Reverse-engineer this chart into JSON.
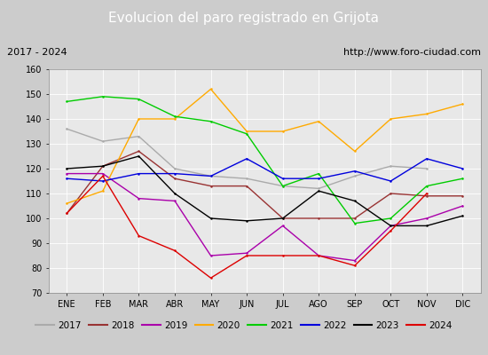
{
  "title": "Evolucion del paro registrado en Grijota",
  "subtitle_left": "2017 - 2024",
  "subtitle_right": "http://www.foro-ciudad.com",
  "months": [
    "ENE",
    "FEB",
    "MAR",
    "ABR",
    "MAY",
    "JUN",
    "JUL",
    "AGO",
    "SEP",
    "OCT",
    "NOV",
    "DIC"
  ],
  "ylim": [
    70,
    160
  ],
  "yticks": [
    70,
    80,
    90,
    100,
    110,
    120,
    130,
    140,
    150,
    160
  ],
  "series": {
    "2017": {
      "color": "#aaaaaa",
      "values": [
        136,
        131,
        133,
        120,
        117,
        116,
        113,
        112,
        117,
        121,
        120,
        null
      ]
    },
    "2018": {
      "color": "#993333",
      "values": [
        102,
        121,
        127,
        116,
        113,
        113,
        100,
        100,
        100,
        110,
        109,
        109
      ]
    },
    "2019": {
      "color": "#aa00aa",
      "values": [
        118,
        118,
        108,
        107,
        85,
        86,
        97,
        85,
        83,
        97,
        100,
        105
      ]
    },
    "2020": {
      "color": "#ffaa00",
      "values": [
        106,
        111,
        140,
        140,
        152,
        135,
        135,
        139,
        127,
        140,
        142,
        146
      ]
    },
    "2021": {
      "color": "#00cc00",
      "values": [
        147,
        149,
        148,
        141,
        139,
        134,
        113,
        118,
        98,
        100,
        113,
        116
      ]
    },
    "2022": {
      "color": "#0000dd",
      "values": [
        116,
        115,
        118,
        118,
        117,
        124,
        116,
        116,
        119,
        115,
        124,
        120
      ]
    },
    "2023": {
      "color": "#000000",
      "values": [
        120,
        121,
        125,
        110,
        100,
        99,
        100,
        111,
        107,
        97,
        97,
        101
      ]
    },
    "2024": {
      "color": "#dd0000",
      "values": [
        102,
        117,
        93,
        87,
        76,
        85,
        85,
        85,
        81,
        95,
        110,
        null
      ]
    }
  },
  "title_bg_color": "#4472c4",
  "title_fg_color": "#ffffff",
  "subtitle_bg_color": "#e0e0e0",
  "plot_bg_color": "#e8e8e8",
  "grid_color": "#ffffff",
  "legend_bg_color": "#f0f0f0",
  "title_fontsize": 11,
  "subtitle_fontsize": 8,
  "tick_fontsize": 7,
  "legend_fontsize": 7.5
}
